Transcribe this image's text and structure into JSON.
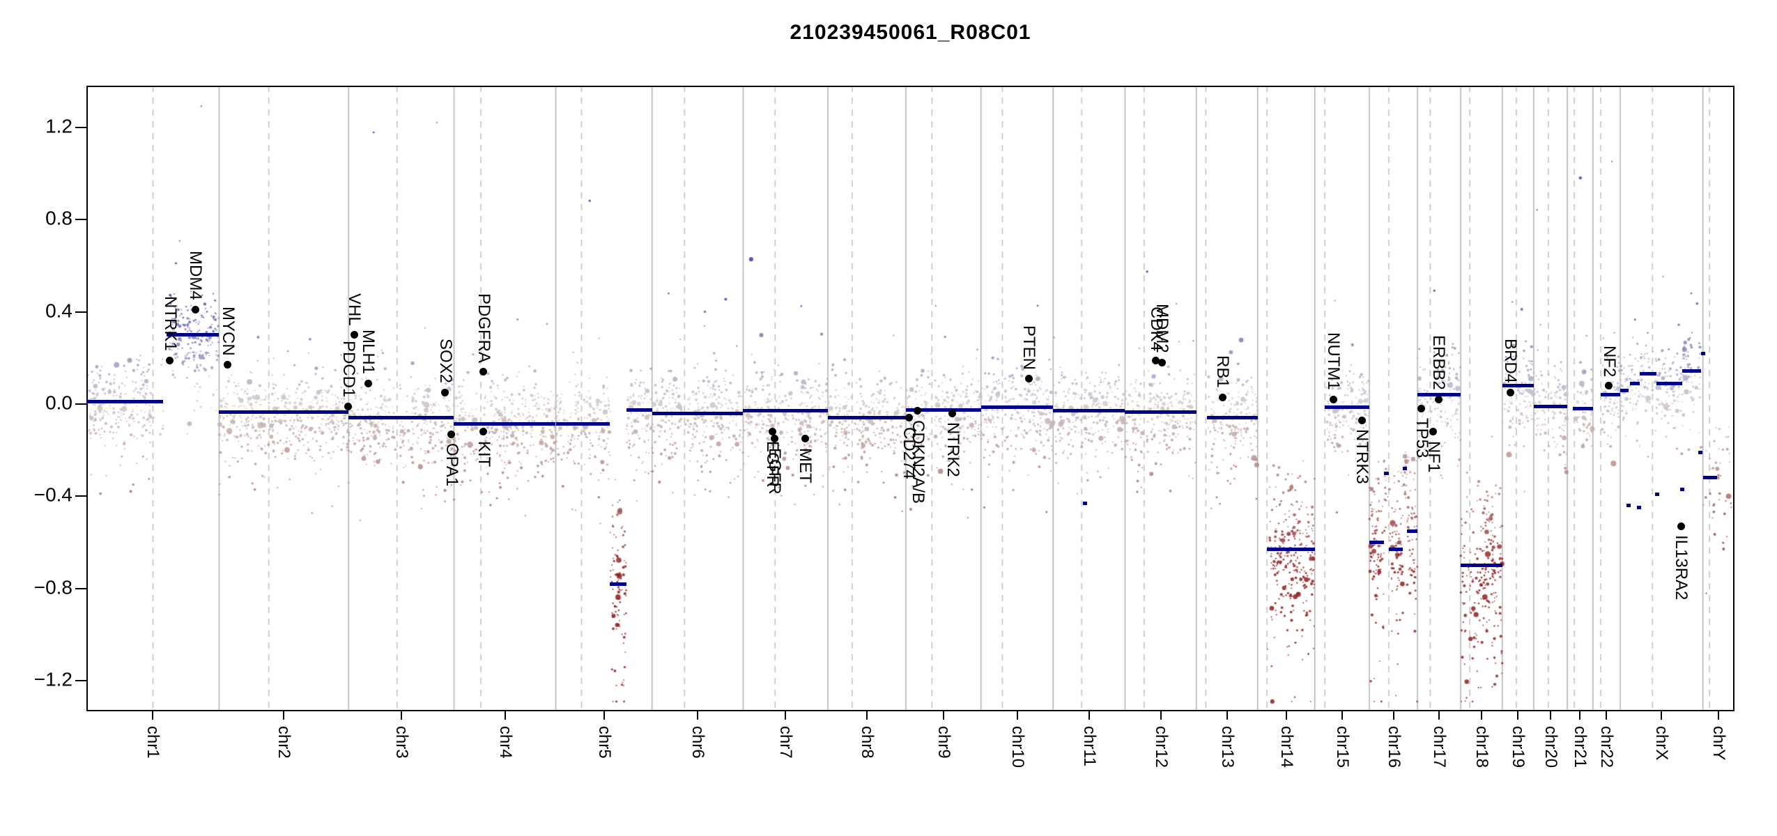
{
  "title": "210239450061_R08C01",
  "chart_data": {
    "type": "scatter",
    "title": "210239450061_R08C01",
    "description": "Genome-wide copy-number plot (log2 ratio) across chr1-chrY with segmentation lines and annotated genes",
    "ylim": [
      -1.33,
      1.38
    ],
    "y_ticks": [
      1.2,
      0.8,
      0.4,
      0.0,
      -0.4,
      -0.8,
      -1.2
    ],
    "y_tick_labels": [
      "1.2",
      "0.8",
      "0.4",
      "0.0",
      "−0.4",
      "−0.8",
      "−1.2"
    ],
    "legend": "none",
    "grid": {
      "chromosome_boundaries": "solid",
      "centromeres": "dashed"
    },
    "colors": {
      "gain_point": "#3a3aa2",
      "neutral_point": "#cccccc",
      "loss_point": "#902020",
      "segment": "#00008b",
      "gene_dot": "#000000",
      "boundary_line": "#ababab",
      "centromere_line": "#c2c2c2",
      "axis": "#000000",
      "background": "#ffffff"
    },
    "chromosomes": [
      {
        "name": "chr1",
        "length_mb": 249.25,
        "centromere_mb": 125.0
      },
      {
        "name": "chr2",
        "length_mb": 243.2,
        "centromere_mb": 93.3
      },
      {
        "name": "chr3",
        "length_mb": 198.02,
        "centromere_mb": 91.0
      },
      {
        "name": "chr4",
        "length_mb": 191.15,
        "centromere_mb": 50.4
      },
      {
        "name": "chr5",
        "length_mb": 180.92,
        "centromere_mb": 48.4
      },
      {
        "name": "chr6",
        "length_mb": 171.12,
        "centromere_mb": 61.0
      },
      {
        "name": "chr7",
        "length_mb": 159.14,
        "centromere_mb": 59.9
      },
      {
        "name": "chr8",
        "length_mb": 146.36,
        "centromere_mb": 45.6
      },
      {
        "name": "chr9",
        "length_mb": 141.21,
        "centromere_mb": 49.0
      },
      {
        "name": "chr10",
        "length_mb": 135.53,
        "centromere_mb": 40.2
      },
      {
        "name": "chr11",
        "length_mb": 135.01,
        "centromere_mb": 53.7
      },
      {
        "name": "chr12",
        "length_mb": 133.85,
        "centromere_mb": 35.8
      },
      {
        "name": "chr13",
        "length_mb": 115.17,
        "centromere_mb": 17.9
      },
      {
        "name": "chr14",
        "length_mb": 107.35,
        "centromere_mb": 17.6
      },
      {
        "name": "chr15",
        "length_mb": 102.53,
        "centromere_mb": 19.0
      },
      {
        "name": "chr16",
        "length_mb": 90.35,
        "centromere_mb": 36.6
      },
      {
        "name": "chr17",
        "length_mb": 81.2,
        "centromere_mb": 24.0
      },
      {
        "name": "chr18",
        "length_mb": 78.08,
        "centromere_mb": 17.2
      },
      {
        "name": "chr19",
        "length_mb": 59.13,
        "centromere_mb": 26.5
      },
      {
        "name": "chr20",
        "length_mb": 63.03,
        "centromere_mb": 27.5
      },
      {
        "name": "chr21",
        "length_mb": 48.13,
        "centromere_mb": 13.2
      },
      {
        "name": "chr22",
        "length_mb": 51.3,
        "centromere_mb": 14.7
      },
      {
        "name": "chrX",
        "length_mb": 155.27,
        "centromere_mb": 60.6
      },
      {
        "name": "chrY",
        "length_mb": 59.37,
        "centromere_mb": 12.5
      }
    ],
    "segments": [
      {
        "chrom": "chr1",
        "start_mb": 0,
        "end_mb": 144,
        "value": 0.01
      },
      {
        "chrom": "chr1",
        "start_mb": 150,
        "end_mb": 249.2,
        "value": 0.3
      },
      {
        "chrom": "chr2",
        "start_mb": 0,
        "end_mb": 243.2,
        "value": -0.035
      },
      {
        "chrom": "chr3",
        "start_mb": 0,
        "end_mb": 198.0,
        "value": -0.06
      },
      {
        "chrom": "chr4",
        "start_mb": 0,
        "end_mb": 191.1,
        "value": -0.085
      },
      {
        "chrom": "chr5",
        "start_mb": 0,
        "end_mb": 102,
        "value": -0.085
      },
      {
        "chrom": "chr5",
        "start_mb": 102,
        "end_mb": 133,
        "value": -0.78
      },
      {
        "chrom": "chr5",
        "start_mb": 133,
        "end_mb": 180.9,
        "value": -0.025
      },
      {
        "chrom": "chr6",
        "start_mb": 0,
        "end_mb": 171.1,
        "value": -0.04
      },
      {
        "chrom": "chr7",
        "start_mb": 0,
        "end_mb": 159.1,
        "value": -0.03
      },
      {
        "chrom": "chr8",
        "start_mb": 0,
        "end_mb": 146.4,
        "value": -0.06
      },
      {
        "chrom": "chr9",
        "start_mb": 0,
        "end_mb": 141.2,
        "value": -0.025
      },
      {
        "chrom": "chr10",
        "start_mb": 0,
        "end_mb": 135.5,
        "value": -0.015
      },
      {
        "chrom": "chr11",
        "start_mb": 0,
        "end_mb": 135.0,
        "value": -0.03
      },
      {
        "chrom": "chr11",
        "start_mb": 56,
        "end_mb": 60,
        "value": -0.43,
        "micro": true
      },
      {
        "chrom": "chr12",
        "start_mb": 0,
        "end_mb": 133.8,
        "value": -0.035
      },
      {
        "chrom": "chr13",
        "start_mb": 20,
        "end_mb": 115.2,
        "value": -0.06
      },
      {
        "chrom": "chr14",
        "start_mb": 17.6,
        "end_mb": 107.3,
        "value": -0.63
      },
      {
        "chrom": "chr15",
        "start_mb": 19,
        "end_mb": 102.5,
        "value": -0.015
      },
      {
        "chrom": "chr16",
        "start_mb": 0,
        "end_mb": 27,
        "value": -0.6
      },
      {
        "chrom": "chr16",
        "start_mb": 27,
        "end_mb": 37,
        "value": -0.3
      },
      {
        "chrom": "chr16",
        "start_mb": 37,
        "end_mb": 63,
        "value": -0.63
      },
      {
        "chrom": "chr16",
        "start_mb": 63,
        "end_mb": 71,
        "value": -0.28
      },
      {
        "chrom": "chr16",
        "start_mb": 71,
        "end_mb": 90.3,
        "value": -0.55
      },
      {
        "chrom": "chr17",
        "start_mb": 0,
        "end_mb": 81.2,
        "value": 0.04
      },
      {
        "chrom": "chr18",
        "start_mb": 0,
        "end_mb": 78.1,
        "value": -0.7
      },
      {
        "chrom": "chr19",
        "start_mb": 0,
        "end_mb": 59.1,
        "value": 0.08
      },
      {
        "chrom": "chr20",
        "start_mb": 0,
        "end_mb": 63.0,
        "value": -0.01
      },
      {
        "chrom": "chr21",
        "start_mb": 10,
        "end_mb": 48.1,
        "value": -0.02
      },
      {
        "chrom": "chr22",
        "start_mb": 15,
        "end_mb": 51.3,
        "value": 0.04
      },
      {
        "chrom": "chrX",
        "start_mb": 0,
        "end_mb": 16,
        "value": 0.06
      },
      {
        "chrom": "chrX",
        "start_mb": 18,
        "end_mb": 37,
        "value": 0.09
      },
      {
        "chrom": "chrX",
        "start_mb": 37,
        "end_mb": 68,
        "value": 0.13
      },
      {
        "chrom": "chrX",
        "start_mb": 68,
        "end_mb": 117,
        "value": 0.09
      },
      {
        "chrom": "chrX",
        "start_mb": 117,
        "end_mb": 152,
        "value": 0.145
      },
      {
        "chrom": "chrX",
        "start_mb": 12,
        "end_mb": 15,
        "value": -0.44,
        "micro": true
      },
      {
        "chrom": "chrX",
        "start_mb": 31,
        "end_mb": 34,
        "value": -0.45,
        "micro": true
      },
      {
        "chrom": "chrX",
        "start_mb": 66,
        "end_mb": 69,
        "value": -0.39,
        "micro": true
      },
      {
        "chrom": "chrX",
        "start_mb": 113,
        "end_mb": 116,
        "value": -0.37,
        "micro": true
      },
      {
        "chrom": "chrX",
        "start_mb": 146,
        "end_mb": 149,
        "value": -0.21,
        "micro": true
      },
      {
        "chrom": "chrX",
        "start_mb": 152,
        "end_mb": 155,
        "value": 0.22,
        "micro": true
      },
      {
        "chrom": "chrY",
        "start_mb": 0,
        "end_mb": 26,
        "value": -0.32
      },
      {
        "chrom": "chrY",
        "start_mb": 26,
        "end_mb": 59.3,
        "value": -0.28,
        "cloud": true
      }
    ],
    "genes": [
      {
        "name": "NTRK1",
        "chrom": "chr1",
        "pos_mb": 156.8,
        "value": 0.19,
        "label_side": "above"
      },
      {
        "name": "MDM4",
        "chrom": "chr1",
        "pos_mb": 204.5,
        "value": 0.41,
        "label_side": "above"
      },
      {
        "name": "MYCN",
        "chrom": "chr2",
        "pos_mb": 16.1,
        "value": 0.17,
        "label_side": "above"
      },
      {
        "name": "PDCD1",
        "chrom": "chr2",
        "pos_mb": 242.8,
        "value": -0.01,
        "label_side": "above"
      },
      {
        "name": "VHL",
        "chrom": "chr3",
        "pos_mb": 10.2,
        "value": 0.3,
        "label_side": "above"
      },
      {
        "name": "MLH1",
        "chrom": "chr3",
        "pos_mb": 37.0,
        "value": 0.09,
        "label_side": "above"
      },
      {
        "name": "SOX2",
        "chrom": "chr3",
        "pos_mb": 181.4,
        "value": 0.05,
        "label_side": "above"
      },
      {
        "name": "OPA1",
        "chrom": "chr3",
        "pos_mb": 193.3,
        "value": -0.13,
        "label_side": "below"
      },
      {
        "name": "PDGFRA",
        "chrom": "chr4",
        "pos_mb": 55.1,
        "value": 0.14,
        "label_side": "above"
      },
      {
        "name": "KIT",
        "chrom": "chr4",
        "pos_mb": 55.5,
        "value": -0.12,
        "label_side": "below"
      },
      {
        "name": "EGFR",
        "chrom": "chr7",
        "pos_mb": 54.5,
        "value": -0.12,
        "label_side": "below"
      },
      {
        "name": "EGFR",
        "chrom": "chr7",
        "pos_mb": 58.5,
        "value": -0.15,
        "label_side": "below"
      },
      {
        "name": "MET",
        "chrom": "chr7",
        "pos_mb": 116.3,
        "value": -0.15,
        "label_side": "below"
      },
      {
        "name": "CD274",
        "chrom": "chr9",
        "pos_mb": 5.5,
        "value": -0.06,
        "label_side": "below"
      },
      {
        "name": "CDKN2A/B",
        "chrom": "chr9",
        "pos_mb": 22.0,
        "value": -0.03,
        "label_side": "below"
      },
      {
        "name": "NTRK2",
        "chrom": "chr9",
        "pos_mb": 87.3,
        "value": -0.04,
        "label_side": "below"
      },
      {
        "name": "PTEN",
        "chrom": "chr10",
        "pos_mb": 89.6,
        "value": 0.11,
        "label_side": "above"
      },
      {
        "name": "CDK4",
        "chrom": "chr12",
        "pos_mb": 58.1,
        "value": 0.19,
        "label_side": "above"
      },
      {
        "name": "MDM2",
        "chrom": "chr12",
        "pos_mb": 69.2,
        "value": 0.18,
        "label_side": "above"
      },
      {
        "name": "RB1",
        "chrom": "chr13",
        "pos_mb": 48.9,
        "value": 0.03,
        "label_side": "above"
      },
      {
        "name": "NUTM1",
        "chrom": "chr15",
        "pos_mb": 34.6,
        "value": 0.02,
        "label_side": "above"
      },
      {
        "name": "NTRK3",
        "chrom": "chr15",
        "pos_mb": 88.4,
        "value": -0.07,
        "label_side": "below"
      },
      {
        "name": "TP53",
        "chrom": "chr17",
        "pos_mb": 7.6,
        "value": -0.02,
        "label_side": "below"
      },
      {
        "name": "NF1",
        "chrom": "chr17",
        "pos_mb": 29.4,
        "value": -0.12,
        "label_side": "below"
      },
      {
        "name": "ERBB2",
        "chrom": "chr17",
        "pos_mb": 39.7,
        "value": 0.02,
        "label_side": "above"
      },
      {
        "name": "BRD4",
        "chrom": "chr19",
        "pos_mb": 15.4,
        "value": 0.05,
        "label_side": "above"
      },
      {
        "name": "NF2",
        "chrom": "chr22",
        "pos_mb": 30.0,
        "value": 0.08,
        "label_side": "above"
      },
      {
        "name": "IL13RA2",
        "chrom": "chrX",
        "pos_mb": 114.3,
        "value": -0.53,
        "label_side": "below"
      }
    ]
  }
}
